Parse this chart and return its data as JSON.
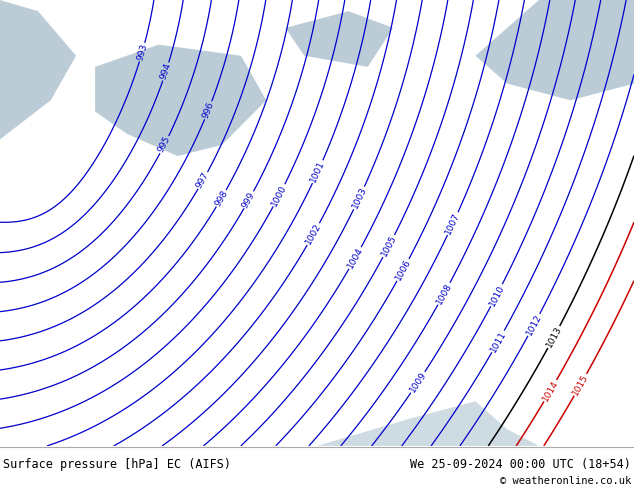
{
  "title_left": "Surface pressure [hPa] EC (AIFS)",
  "title_right": "We 25-09-2024 00:00 UTC (18+54)",
  "copyright": "© weatheronline.co.uk",
  "land_color": "#c8e6a0",
  "sea_color": "#b0c4d0",
  "contour_color_blue": "#0000cc",
  "contour_color_black": "#000000",
  "contour_color_red": "#cc0000",
  "footer_bg": "#ffffff",
  "footer_text_color": "#000000",
  "figsize": [
    6.34,
    4.9
  ],
  "dpi": 100
}
